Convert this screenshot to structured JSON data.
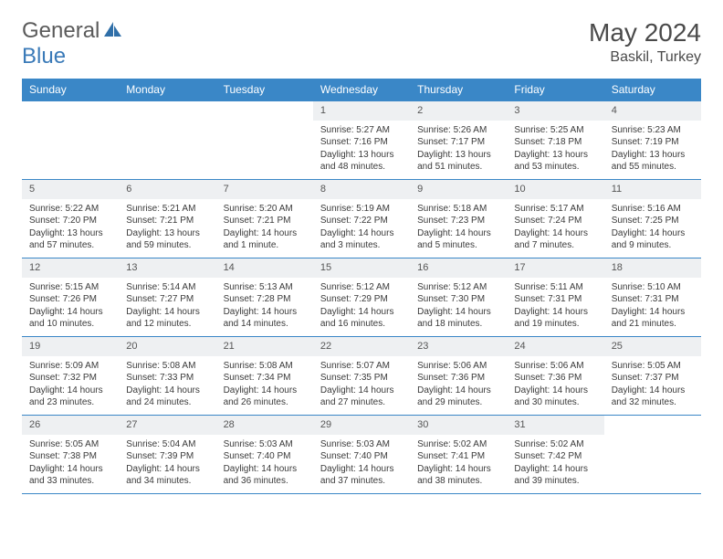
{
  "brand": {
    "general": "General",
    "blue": "Blue"
  },
  "title": "May 2024",
  "location": "Baskil, Turkey",
  "colors": {
    "header_bg": "#3a87c7",
    "header_text": "#ffffff",
    "daynum_bg": "#eef0f2",
    "rule": "#3a87c7",
    "text": "#3a3a3a",
    "page_bg": "#ffffff",
    "logo_general": "#5a5a5a",
    "logo_blue": "#3a7ab8"
  },
  "typography": {
    "title_fontsize": 28,
    "location_fontsize": 16,
    "dayhead_fontsize": 12,
    "daynum_fontsize": 11,
    "body_fontsize": 10
  },
  "dayheads": [
    "Sunday",
    "Monday",
    "Tuesday",
    "Wednesday",
    "Thursday",
    "Friday",
    "Saturday"
  ],
  "weeks": [
    [
      {
        "n": "",
        "sr": "",
        "ss": "",
        "dl": ""
      },
      {
        "n": "",
        "sr": "",
        "ss": "",
        "dl": ""
      },
      {
        "n": "",
        "sr": "",
        "ss": "",
        "dl": ""
      },
      {
        "n": "1",
        "sr": "Sunrise: 5:27 AM",
        "ss": "Sunset: 7:16 PM",
        "dl": "Daylight: 13 hours and 48 minutes."
      },
      {
        "n": "2",
        "sr": "Sunrise: 5:26 AM",
        "ss": "Sunset: 7:17 PM",
        "dl": "Daylight: 13 hours and 51 minutes."
      },
      {
        "n": "3",
        "sr": "Sunrise: 5:25 AM",
        "ss": "Sunset: 7:18 PM",
        "dl": "Daylight: 13 hours and 53 minutes."
      },
      {
        "n": "4",
        "sr": "Sunrise: 5:23 AM",
        "ss": "Sunset: 7:19 PM",
        "dl": "Daylight: 13 hours and 55 minutes."
      }
    ],
    [
      {
        "n": "5",
        "sr": "Sunrise: 5:22 AM",
        "ss": "Sunset: 7:20 PM",
        "dl": "Daylight: 13 hours and 57 minutes."
      },
      {
        "n": "6",
        "sr": "Sunrise: 5:21 AM",
        "ss": "Sunset: 7:21 PM",
        "dl": "Daylight: 13 hours and 59 minutes."
      },
      {
        "n": "7",
        "sr": "Sunrise: 5:20 AM",
        "ss": "Sunset: 7:21 PM",
        "dl": "Daylight: 14 hours and 1 minute."
      },
      {
        "n": "8",
        "sr": "Sunrise: 5:19 AM",
        "ss": "Sunset: 7:22 PM",
        "dl": "Daylight: 14 hours and 3 minutes."
      },
      {
        "n": "9",
        "sr": "Sunrise: 5:18 AM",
        "ss": "Sunset: 7:23 PM",
        "dl": "Daylight: 14 hours and 5 minutes."
      },
      {
        "n": "10",
        "sr": "Sunrise: 5:17 AM",
        "ss": "Sunset: 7:24 PM",
        "dl": "Daylight: 14 hours and 7 minutes."
      },
      {
        "n": "11",
        "sr": "Sunrise: 5:16 AM",
        "ss": "Sunset: 7:25 PM",
        "dl": "Daylight: 14 hours and 9 minutes."
      }
    ],
    [
      {
        "n": "12",
        "sr": "Sunrise: 5:15 AM",
        "ss": "Sunset: 7:26 PM",
        "dl": "Daylight: 14 hours and 10 minutes."
      },
      {
        "n": "13",
        "sr": "Sunrise: 5:14 AM",
        "ss": "Sunset: 7:27 PM",
        "dl": "Daylight: 14 hours and 12 minutes."
      },
      {
        "n": "14",
        "sr": "Sunrise: 5:13 AM",
        "ss": "Sunset: 7:28 PM",
        "dl": "Daylight: 14 hours and 14 minutes."
      },
      {
        "n": "15",
        "sr": "Sunrise: 5:12 AM",
        "ss": "Sunset: 7:29 PM",
        "dl": "Daylight: 14 hours and 16 minutes."
      },
      {
        "n": "16",
        "sr": "Sunrise: 5:12 AM",
        "ss": "Sunset: 7:30 PM",
        "dl": "Daylight: 14 hours and 18 minutes."
      },
      {
        "n": "17",
        "sr": "Sunrise: 5:11 AM",
        "ss": "Sunset: 7:31 PM",
        "dl": "Daylight: 14 hours and 19 minutes."
      },
      {
        "n": "18",
        "sr": "Sunrise: 5:10 AM",
        "ss": "Sunset: 7:31 PM",
        "dl": "Daylight: 14 hours and 21 minutes."
      }
    ],
    [
      {
        "n": "19",
        "sr": "Sunrise: 5:09 AM",
        "ss": "Sunset: 7:32 PM",
        "dl": "Daylight: 14 hours and 23 minutes."
      },
      {
        "n": "20",
        "sr": "Sunrise: 5:08 AM",
        "ss": "Sunset: 7:33 PM",
        "dl": "Daylight: 14 hours and 24 minutes."
      },
      {
        "n": "21",
        "sr": "Sunrise: 5:08 AM",
        "ss": "Sunset: 7:34 PM",
        "dl": "Daylight: 14 hours and 26 minutes."
      },
      {
        "n": "22",
        "sr": "Sunrise: 5:07 AM",
        "ss": "Sunset: 7:35 PM",
        "dl": "Daylight: 14 hours and 27 minutes."
      },
      {
        "n": "23",
        "sr": "Sunrise: 5:06 AM",
        "ss": "Sunset: 7:36 PM",
        "dl": "Daylight: 14 hours and 29 minutes."
      },
      {
        "n": "24",
        "sr": "Sunrise: 5:06 AM",
        "ss": "Sunset: 7:36 PM",
        "dl": "Daylight: 14 hours and 30 minutes."
      },
      {
        "n": "25",
        "sr": "Sunrise: 5:05 AM",
        "ss": "Sunset: 7:37 PM",
        "dl": "Daylight: 14 hours and 32 minutes."
      }
    ],
    [
      {
        "n": "26",
        "sr": "Sunrise: 5:05 AM",
        "ss": "Sunset: 7:38 PM",
        "dl": "Daylight: 14 hours and 33 minutes."
      },
      {
        "n": "27",
        "sr": "Sunrise: 5:04 AM",
        "ss": "Sunset: 7:39 PM",
        "dl": "Daylight: 14 hours and 34 minutes."
      },
      {
        "n": "28",
        "sr": "Sunrise: 5:03 AM",
        "ss": "Sunset: 7:40 PM",
        "dl": "Daylight: 14 hours and 36 minutes."
      },
      {
        "n": "29",
        "sr": "Sunrise: 5:03 AM",
        "ss": "Sunset: 7:40 PM",
        "dl": "Daylight: 14 hours and 37 minutes."
      },
      {
        "n": "30",
        "sr": "Sunrise: 5:02 AM",
        "ss": "Sunset: 7:41 PM",
        "dl": "Daylight: 14 hours and 38 minutes."
      },
      {
        "n": "31",
        "sr": "Sunrise: 5:02 AM",
        "ss": "Sunset: 7:42 PM",
        "dl": "Daylight: 14 hours and 39 minutes."
      },
      {
        "n": "",
        "sr": "",
        "ss": "",
        "dl": ""
      }
    ]
  ]
}
